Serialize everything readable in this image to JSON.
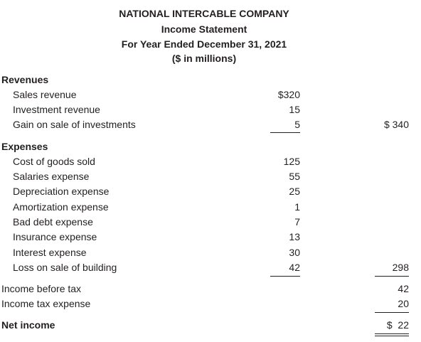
{
  "header": {
    "company": "NATIONAL INTERCABLE COMPANY",
    "statement": "Income Statement",
    "period": "For Year Ended December 31, 2021",
    "units": "($ in millions)"
  },
  "revenues": {
    "title": "Revenues",
    "items": [
      {
        "label": "Sales revenue",
        "amount": "$320",
        "total": ""
      },
      {
        "label": "Investment revenue",
        "amount": "15",
        "total": ""
      },
      {
        "label": "Gain on sale of investments",
        "amount": "5",
        "total": "$ 340"
      }
    ]
  },
  "expenses": {
    "title": "Expenses",
    "items": [
      {
        "label": "Cost of goods sold",
        "amount": "125",
        "total": ""
      },
      {
        "label": "Salaries expense",
        "amount": "55",
        "total": ""
      },
      {
        "label": "Depreciation expense",
        "amount": "25",
        "total": ""
      },
      {
        "label": "Amortization expense",
        "amount": "1",
        "total": ""
      },
      {
        "label": "Bad debt expense",
        "amount": "7",
        "total": ""
      },
      {
        "label": "Insurance expense",
        "amount": "13",
        "total": ""
      },
      {
        "label": "Interest expense",
        "amount": "30",
        "total": ""
      },
      {
        "label": "Loss on sale of building",
        "amount": "42",
        "total": "298"
      }
    ]
  },
  "income_before_tax": {
    "label": "Income before tax",
    "value": "42"
  },
  "income_tax_expense": {
    "label": "Income tax expense",
    "value": "20"
  },
  "net_income": {
    "label": "Net income",
    "value": "$  22"
  }
}
